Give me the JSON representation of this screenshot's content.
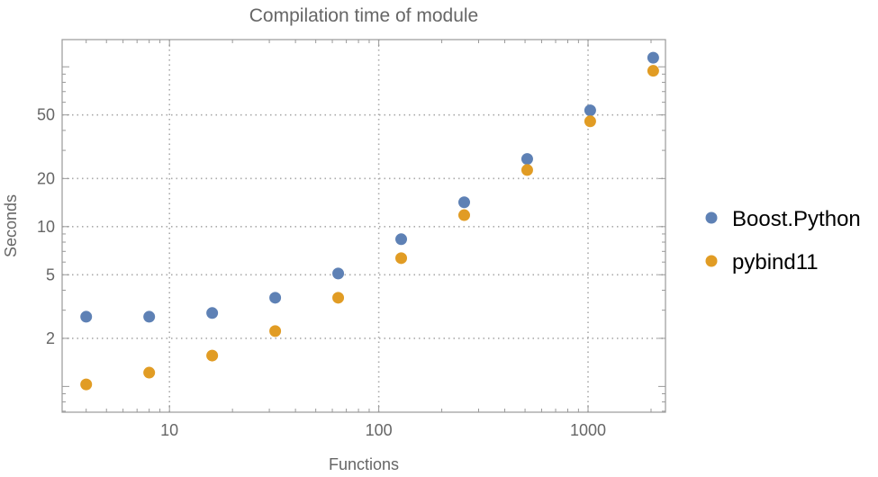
{
  "chart_data": {
    "type": "scatter",
    "title": "Compilation time of module",
    "xlabel": "Functions",
    "ylabel": "Seconds",
    "x_scale": "log",
    "y_scale": "log",
    "xlim": [
      3.07,
      2344
    ],
    "ylim": [
      0.69,
      148
    ],
    "x_ticks": [
      10,
      100,
      1000
    ],
    "x_tick_labels": [
      "10",
      "100",
      "1000"
    ],
    "y_ticks": [
      2,
      5,
      10,
      20,
      50
    ],
    "y_tick_labels": [
      "2",
      "5",
      "10",
      "20",
      "50"
    ],
    "grid": true,
    "legend_position": "right",
    "x": [
      4,
      8,
      16,
      32,
      64,
      128,
      256,
      512,
      1024,
      2048
    ],
    "series": [
      {
        "name": "Boost.Python",
        "color": "#5E81B5",
        "values": [
          2.73,
          2.73,
          2.88,
          3.59,
          5.09,
          8.34,
          14.2,
          26.5,
          53.4,
          114
        ]
      },
      {
        "name": "pybind11",
        "color": "#E19C24",
        "values": [
          1.03,
          1.22,
          1.56,
          2.22,
          3.59,
          6.35,
          11.8,
          22.6,
          45.6,
          94.4
        ]
      }
    ]
  }
}
